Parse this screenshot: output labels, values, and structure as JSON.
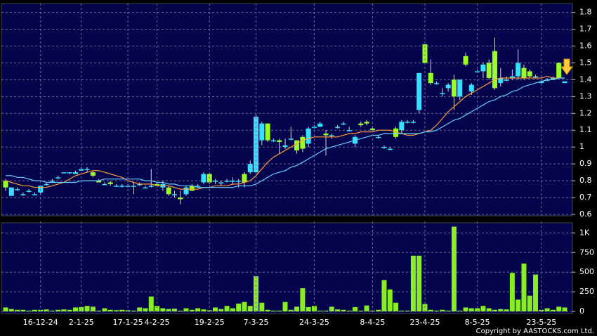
{
  "chart_data": [
    {
      "type": "candlestick",
      "up_color": "#33e0ff",
      "down_color": "#99ff22",
      "wick_color": "#d8d8d8",
      "ylim": [
        0.6,
        1.84
      ],
      "yticks": [
        0.6,
        0.7,
        0.8,
        0.9,
        1,
        1.1,
        1.2,
        1.3,
        1.4,
        1.5,
        1.6,
        1.7,
        1.8
      ],
      "grid": true,
      "ohlc": [
        [
          0.8,
          0.81,
          0.74,
          0.76
        ],
        [
          0.71,
          0.76,
          0.71,
          0.76
        ],
        [
          0.75,
          0.76,
          0.74,
          0.75
        ],
        [
          0.72,
          0.73,
          0.71,
          0.72
        ],
        [
          0.74,
          0.75,
          0.73,
          0.74
        ],
        [
          0.72,
          0.73,
          0.72,
          0.72
        ],
        [
          0.73,
          0.77,
          0.72,
          0.77
        ],
        [
          0.78,
          0.79,
          0.77,
          0.78
        ],
        [
          0.8,
          0.81,
          0.79,
          0.8
        ],
        [
          0.82,
          0.83,
          0.81,
          0.82
        ],
        [
          0.85,
          0.85,
          0.85,
          0.85
        ],
        [
          0.85,
          0.85,
          0.84,
          0.85
        ],
        [
          0.84,
          0.86,
          0.84,
          0.85
        ],
        [
          0.86,
          0.88,
          0.86,
          0.87
        ],
        [
          0.87,
          0.88,
          0.85,
          0.87
        ],
        [
          0.85,
          0.86,
          0.82,
          0.83
        ],
        [
          0.8,
          0.81,
          0.79,
          0.79
        ],
        [
          0.78,
          0.79,
          0.78,
          0.78
        ],
        [
          0.79,
          0.8,
          0.77,
          0.78
        ],
        [
          0.77,
          0.78,
          0.77,
          0.77
        ],
        [
          0.77,
          0.78,
          0.76,
          0.77
        ],
        [
          0.77,
          0.78,
          0.76,
          0.77
        ],
        [
          0.77,
          0.79,
          0.72,
          0.77
        ],
        [
          0.78,
          0.79,
          0.77,
          0.78
        ],
        [
          0.76,
          0.77,
          0.76,
          0.76
        ],
        [
          0.77,
          0.87,
          0.76,
          0.77
        ],
        [
          0.78,
          0.8,
          0.76,
          0.77
        ],
        [
          0.76,
          0.8,
          0.74,
          0.78
        ],
        [
          0.76,
          0.77,
          0.71,
          0.72
        ],
        [
          0.72,
          0.74,
          0.7,
          0.72
        ],
        [
          0.7,
          0.74,
          0.66,
          0.69
        ],
        [
          0.72,
          0.77,
          0.71,
          0.76
        ],
        [
          0.77,
          0.78,
          0.74,
          0.74
        ],
        [
          0.77,
          0.78,
          0.76,
          0.77
        ],
        [
          0.79,
          0.85,
          0.78,
          0.84
        ],
        [
          0.84,
          0.85,
          0.78,
          0.79
        ],
        [
          0.8,
          0.81,
          0.78,
          0.8
        ],
        [
          0.79,
          0.8,
          0.77,
          0.79
        ],
        [
          0.8,
          0.81,
          0.79,
          0.8
        ],
        [
          0.8,
          0.82,
          0.78,
          0.8
        ],
        [
          0.8,
          0.81,
          0.76,
          0.8
        ],
        [
          0.84,
          0.85,
          0.76,
          0.79
        ],
        [
          0.85,
          0.92,
          0.84,
          0.9
        ],
        [
          0.85,
          1.19,
          0.84,
          1.18
        ],
        [
          1.04,
          1.15,
          1.01,
          1.14
        ],
        [
          1.14,
          1.14,
          1.03,
          1.04
        ],
        [
          1.04,
          1.05,
          1.03,
          1.04
        ],
        [
          1.04,
          1.05,
          0.96,
          1.03
        ],
        [
          1.0,
          1.05,
          0.99,
          1.01
        ],
        [
          1.05,
          1.12,
          1.04,
          1.05
        ],
        [
          1.04,
          1.04,
          0.96,
          0.98
        ],
        [
          1.06,
          1.07,
          0.97,
          0.99
        ],
        [
          1.02,
          1.12,
          1.0,
          1.11
        ],
        [
          1.12,
          1.13,
          1.11,
          1.12
        ],
        [
          1.12,
          1.15,
          1.12,
          1.14
        ],
        [
          1.08,
          1.1,
          0.95,
          1.07
        ],
        [
          1.07,
          1.08,
          1.05,
          1.07
        ],
        [
          1.12,
          1.13,
          1.11,
          1.12
        ],
        [
          1.14,
          1.15,
          1.13,
          1.14
        ],
        [
          1.1,
          1.12,
          1.1,
          1.1
        ],
        [
          1.02,
          1.07,
          1.0,
          1.06
        ],
        [
          1.14,
          1.15,
          1.12,
          1.13
        ],
        [
          1.15,
          1.16,
          1.13,
          1.14
        ],
        [
          1.11,
          1.12,
          1.1,
          1.1
        ],
        [
          1.06,
          1.07,
          1.05,
          1.06
        ],
        [
          1.0,
          1.01,
          0.99,
          1.0
        ],
        [
          0.99,
          1.0,
          0.98,
          0.99
        ],
        [
          1.11,
          1.12,
          1.05,
          1.06
        ],
        [
          1.1,
          1.16,
          1.08,
          1.15
        ],
        [
          1.15,
          1.16,
          1.14,
          1.15
        ],
        [
          1.15,
          1.16,
          1.14,
          1.15
        ],
        [
          1.22,
          1.44,
          1.2,
          1.44
        ],
        [
          1.61,
          1.61,
          1.49,
          1.5
        ],
        [
          1.44,
          1.52,
          1.37,
          1.38
        ],
        [
          1.38,
          1.39,
          1.37,
          1.38
        ],
        [
          1.32,
          1.35,
          1.3,
          1.32
        ],
        [
          1.35,
          1.38,
          1.33,
          1.37
        ],
        [
          1.4,
          1.43,
          1.22,
          1.3
        ],
        [
          1.3,
          1.4,
          1.28,
          1.4
        ],
        [
          1.54,
          1.56,
          1.48,
          1.49
        ],
        [
          1.33,
          1.38,
          1.31,
          1.37
        ],
        [
          1.45,
          1.46,
          1.44,
          1.45
        ],
        [
          1.45,
          1.5,
          1.41,
          1.49
        ],
        [
          1.5,
          1.52,
          1.4,
          1.41
        ],
        [
          1.57,
          1.65,
          1.34,
          1.35
        ],
        [
          1.38,
          1.47,
          1.36,
          1.41
        ],
        [
          1.4,
          1.42,
          1.39,
          1.4
        ],
        [
          1.41,
          1.46,
          1.4,
          1.42
        ],
        [
          1.42,
          1.58,
          1.4,
          1.5
        ],
        [
          1.47,
          1.49,
          1.4,
          1.41
        ],
        [
          1.45,
          1.46,
          1.41,
          1.42
        ],
        [
          1.42,
          1.43,
          1.41,
          1.42
        ],
        [
          1.38,
          1.4,
          1.38,
          1.39
        ],
        [
          1.4,
          1.41,
          1.39,
          1.4
        ],
        [
          1.41,
          1.42,
          1.4,
          1.41
        ],
        [
          1.5,
          1.5,
          1.41,
          1.41
        ],
        [
          1.38,
          1.39,
          1.38,
          1.39
        ]
      ],
      "lines": [
        {
          "color": "#ff9a3c",
          "values": [
            0.8,
            0.79,
            0.78,
            0.77,
            0.77,
            0.76,
            0.76,
            0.76,
            0.77,
            0.78,
            0.79,
            0.81,
            0.83,
            0.84,
            0.85,
            0.86,
            0.86,
            0.85,
            0.84,
            0.83,
            0.82,
            0.8,
            0.79,
            0.78,
            0.78,
            0.78,
            0.77,
            0.77,
            0.77,
            0.76,
            0.75,
            0.75,
            0.75,
            0.75,
            0.76,
            0.76,
            0.77,
            0.77,
            0.77,
            0.78,
            0.78,
            0.79,
            0.8,
            0.83,
            0.87,
            0.91,
            0.94,
            0.96,
            0.98,
            1.0,
            1.02,
            1.04,
            1.05,
            1.06,
            1.06,
            1.06,
            1.06,
            1.06,
            1.07,
            1.08,
            1.08,
            1.09,
            1.09,
            1.09,
            1.1,
            1.1,
            1.1,
            1.09,
            1.08,
            1.07,
            1.07,
            1.08,
            1.09,
            1.1,
            1.13,
            1.17,
            1.21,
            1.24,
            1.27,
            1.3,
            1.32,
            1.34,
            1.36,
            1.38,
            1.4,
            1.41,
            1.41,
            1.41,
            1.41,
            1.41,
            1.41,
            1.41,
            1.41,
            1.42,
            1.41,
            1.41,
            1.41
          ]
        },
        {
          "color": "#66ccff",
          "values": [
            0.83,
            0.83,
            0.82,
            0.82,
            0.81,
            0.8,
            0.8,
            0.79,
            0.79,
            0.79,
            0.79,
            0.79,
            0.79,
            0.8,
            0.8,
            0.8,
            0.8,
            0.81,
            0.81,
            0.81,
            0.81,
            0.81,
            0.81,
            0.81,
            0.8,
            0.8,
            0.79,
            0.79,
            0.78,
            0.78,
            0.77,
            0.77,
            0.77,
            0.76,
            0.76,
            0.76,
            0.76,
            0.76,
            0.76,
            0.76,
            0.77,
            0.77,
            0.77,
            0.78,
            0.8,
            0.82,
            0.84,
            0.85,
            0.86,
            0.88,
            0.89,
            0.91,
            0.93,
            0.95,
            0.97,
            0.99,
            1.0,
            1.01,
            1.02,
            1.03,
            1.04,
            1.05,
            1.06,
            1.07,
            1.07,
            1.08,
            1.08,
            1.08,
            1.08,
            1.08,
            1.08,
            1.08,
            1.09,
            1.09,
            1.1,
            1.12,
            1.14,
            1.16,
            1.17,
            1.19,
            1.21,
            1.23,
            1.25,
            1.27,
            1.28,
            1.3,
            1.31,
            1.33,
            1.34,
            1.36,
            1.37,
            1.38,
            1.39,
            1.4,
            1.4,
            1.41,
            1.41
          ]
        }
      ]
    },
    {
      "type": "bar",
      "color": "#88ee22",
      "ylim": [
        0,
        1120
      ],
      "yticks": [
        0,
        250,
        500,
        750,
        {
          "value": 1000,
          "label": "1K"
        }
      ],
      "grid": true,
      "categories": [
        null,
        null,
        null,
        null,
        null,
        null,
        "16-12-24",
        null,
        null,
        null,
        null,
        null,
        null,
        "2-1-25",
        null,
        null,
        null,
        null,
        null,
        null,
        null,
        "17-1-25",
        null,
        null,
        null,
        null,
        "4-2-25",
        null,
        null,
        null,
        null,
        null,
        null,
        null,
        null,
        "19-2-25",
        null,
        null,
        null,
        null,
        null,
        null,
        null,
        "7-3-25",
        null,
        null,
        null,
        null,
        null,
        null,
        null,
        null,
        null,
        "24-3-25",
        null,
        null,
        null,
        null,
        null,
        null,
        null,
        null,
        null,
        "8-4-25",
        null,
        null,
        null,
        null,
        null,
        null,
        null,
        null,
        "23-4-25",
        null,
        null,
        null,
        null,
        null,
        null,
        null,
        null,
        "8-5-25",
        null,
        null,
        null,
        null,
        null,
        null,
        null,
        null,
        null,
        null,
        "23-5-25",
        null,
        null,
        null,
        null
      ],
      "values": [
        50,
        30,
        20,
        20,
        10,
        20,
        20,
        25,
        10,
        20,
        25,
        20,
        50,
        55,
        70,
        60,
        10,
        40,
        20,
        15,
        20,
        15,
        10,
        50,
        40,
        190,
        70,
        40,
        30,
        35,
        10,
        40,
        20,
        40,
        25,
        15,
        50,
        30,
        70,
        40,
        100,
        120,
        70,
        450,
        110,
        20,
        10,
        10,
        120,
        20,
        60,
        295,
        55,
        70,
        10,
        10,
        60,
        25,
        20,
        10,
        55,
        10,
        75,
        10,
        20,
        400,
        280,
        110,
        10,
        10,
        710,
        710,
        95,
        20,
        10,
        20,
        10,
        1080,
        10,
        50,
        40,
        40,
        70,
        40,
        20,
        30,
        25,
        490,
        150,
        610,
        200,
        470,
        20,
        40,
        20,
        60,
        50
      ]
    }
  ],
  "copyright": "Copyright by AASTOCKS.com Ltd."
}
